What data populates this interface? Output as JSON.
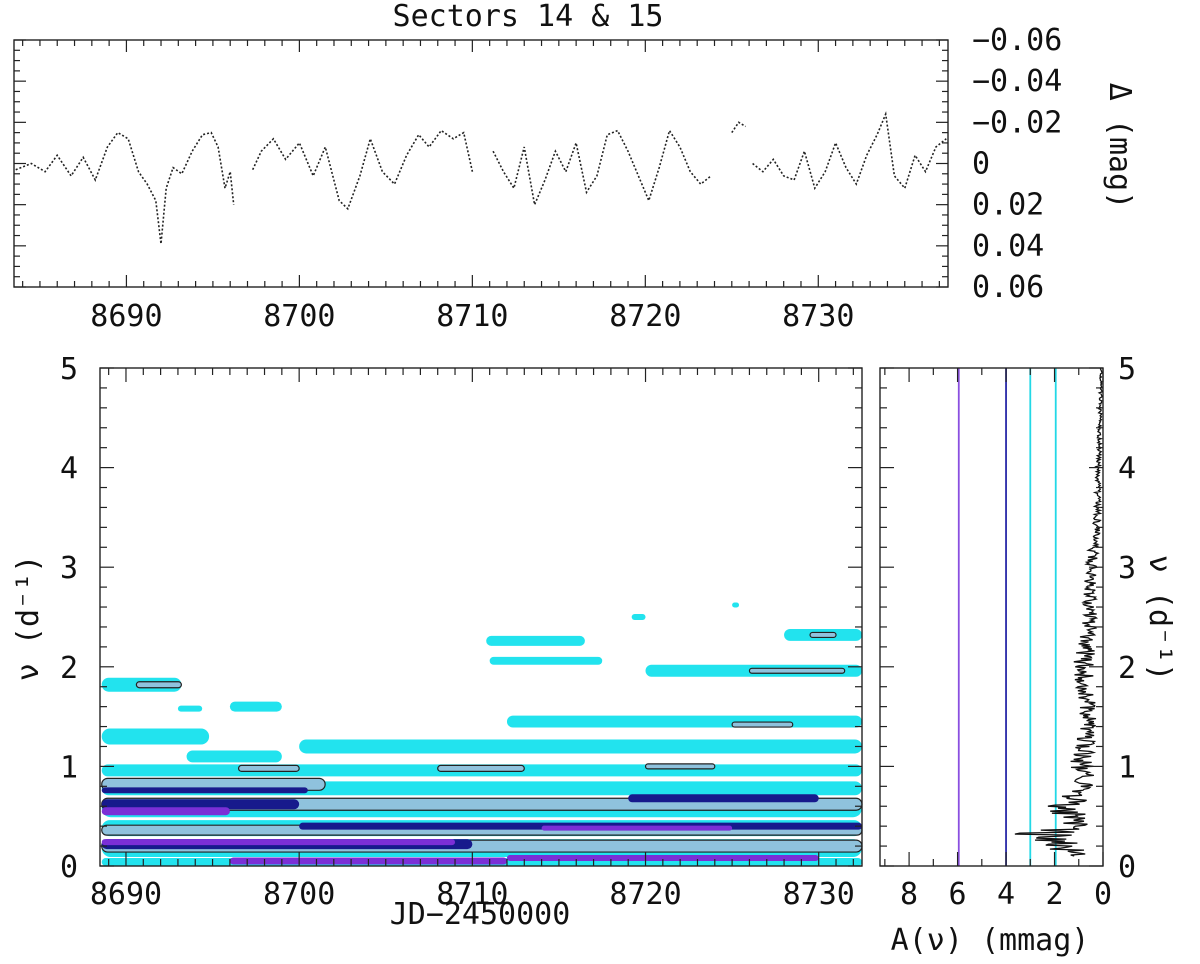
{
  "title": "Sectors 14 & 15",
  "chart_data": [
    {
      "type": "line",
      "panel": "light curve",
      "title": "Sectors 14 & 15",
      "xlabel": "",
      "ylabel": "Δ (mag)",
      "xlim": [
        8683.5,
        8737.5
      ],
      "ylim": [
        0.06,
        -0.06
      ],
      "inverted_y": true,
      "xticks": [
        8690,
        8700,
        8710,
        8720,
        8730
      ],
      "yticks": [
        -0.06,
        -0.04,
        -0.02,
        0,
        0.02,
        0.04,
        0.06
      ],
      "ytick_labels": [
        "−0.06",
        "−0.04",
        "−0.02",
        "0",
        "0.02",
        "0.04",
        "0.06"
      ],
      "line_style": "dotted",
      "segments": [
        {
          "x": [
            8683.6,
            8684.5,
            8685.3,
            8686.0,
            8686.8,
            8687.5,
            8688.2,
            8688.9,
            8689.5,
            8690.1,
            8690.7,
            8691.2,
            8691.7,
            8692.0,
            8692.3,
            8692.7,
            8693.2,
            8693.8,
            8694.4,
            8694.9,
            8695.3,
            8695.7,
            8696.0,
            8696.2
          ],
          "y": [
            0.003,
            0.0,
            0.004,
            -0.004,
            0.006,
            -0.003,
            0.008,
            -0.008,
            -0.015,
            -0.012,
            0.004,
            0.01,
            0.018,
            0.039,
            0.012,
            0.002,
            0.005,
            -0.006,
            -0.014,
            -0.015,
            -0.008,
            0.012,
            0.004,
            0.02
          ]
        },
        {
          "x": [
            8697.3,
            8697.8,
            8698.5,
            8699.2,
            8700.0,
            8700.8,
            8701.5,
            8702.3,
            8702.8,
            8703.5,
            8704.1,
            8704.8,
            8705.5,
            8706.2,
            8706.9,
            8707.5,
            8708.2,
            8708.9,
            8709.5,
            8710.0
          ],
          "y": [
            0.003,
            -0.006,
            -0.012,
            -0.002,
            -0.01,
            0.006,
            -0.008,
            0.018,
            0.022,
            0.006,
            -0.012,
            0.004,
            0.01,
            -0.004,
            -0.014,
            -0.008,
            -0.016,
            -0.012,
            -0.015,
            0.004
          ]
        },
        {
          "x": [
            8711.2,
            8711.8,
            8712.4,
            8713.0,
            8713.6,
            8714.2,
            8714.8,
            8715.4,
            8716.0,
            8716.6,
            8717.2,
            8717.8,
            8718.4,
            8719.0,
            8719.6,
            8720.2,
            8720.8,
            8721.4,
            8722.0,
            8722.6,
            8723.2,
            8723.8
          ],
          "y": [
            -0.006,
            0.004,
            0.012,
            -0.008,
            0.02,
            0.008,
            -0.006,
            0.004,
            -0.01,
            0.014,
            0.006,
            -0.014,
            -0.016,
            -0.006,
            0.006,
            0.018,
            0.002,
            -0.016,
            -0.008,
            0.004,
            0.01,
            0.006
          ]
        },
        {
          "x": [
            8725.0,
            8725.4,
            8725.8
          ],
          "y": [
            -0.015,
            -0.02,
            -0.018
          ]
        },
        {
          "x": [
            8726.2,
            8726.8,
            8727.4,
            8728.0,
            8728.6,
            8729.2,
            8729.8,
            8730.4,
            8731.0,
            8731.6,
            8732.2,
            8732.8,
            8733.4,
            8733.9,
            8734.4,
            8735.0,
            8735.6,
            8736.2,
            8736.8,
            8737.4
          ],
          "y": [
            0.0,
            0.004,
            -0.002,
            0.006,
            0.008,
            -0.006,
            0.012,
            0.004,
            -0.01,
            0.002,
            0.01,
            -0.004,
            -0.014,
            -0.024,
            0.006,
            0.012,
            -0.004,
            0.004,
            -0.008,
            -0.012
          ]
        }
      ]
    },
    {
      "type": "heatmap",
      "panel": "time-frequency",
      "xlabel": "JD−2450000",
      "ylabel": "ν (d⁻¹)",
      "xlim": [
        8688.5,
        8732.5
      ],
      "ylim": [
        0,
        5
      ],
      "xticks": [
        8690,
        8700,
        8710,
        8720,
        8730
      ],
      "yticks": [
        0,
        1,
        2,
        3,
        4,
        5
      ],
      "levels": [
        {
          "name": "cyan",
          "color": "#22e3ee"
        },
        {
          "name": "lightblue",
          "color": "#8fc2dd"
        },
        {
          "name": "navy",
          "color": "#171a8c"
        },
        {
          "name": "purple",
          "color": "#7b2fd6"
        }
      ],
      "patches": [
        {
          "x0": 8688.6,
          "x1": 8693.2,
          "y": 1.82,
          "h": 0.14,
          "level": 0
        },
        {
          "x0": 8690.6,
          "x1": 8693.2,
          "y": 1.82,
          "h": 0.06,
          "level": 1
        },
        {
          "x0": 8688.6,
          "x1": 8694.8,
          "y": 1.3,
          "h": 0.16,
          "level": 0
        },
        {
          "x0": 8693.5,
          "x1": 8699.0,
          "y": 1.1,
          "h": 0.12,
          "level": 0
        },
        {
          "x0": 8696.0,
          "x1": 8699.0,
          "y": 1.6,
          "h": 0.1,
          "level": 0
        },
        {
          "x0": 8693.0,
          "x1": 8694.4,
          "y": 1.58,
          "h": 0.06,
          "level": 0
        },
        {
          "x0": 8710.8,
          "x1": 8716.5,
          "y": 2.26,
          "h": 0.1,
          "level": 0
        },
        {
          "x0": 8711.0,
          "x1": 8717.5,
          "y": 2.06,
          "h": 0.08,
          "level": 0
        },
        {
          "x0": 8719.2,
          "x1": 8720.0,
          "y": 2.5,
          "h": 0.06,
          "level": 0
        },
        {
          "x0": 8725.0,
          "x1": 8725.4,
          "y": 2.62,
          "h": 0.05,
          "level": 0
        },
        {
          "x0": 8728.0,
          "x1": 8732.5,
          "y": 2.32,
          "h": 0.12,
          "level": 0
        },
        {
          "x0": 8729.5,
          "x1": 8731.0,
          "y": 2.32,
          "h": 0.05,
          "level": 1
        },
        {
          "x0": 8720.0,
          "x1": 8732.5,
          "y": 1.96,
          "h": 0.12,
          "level": 0
        },
        {
          "x0": 8726.0,
          "x1": 8731.5,
          "y": 1.96,
          "h": 0.05,
          "level": 1
        },
        {
          "x0": 8712.0,
          "x1": 8732.5,
          "y": 1.45,
          "h": 0.12,
          "level": 0
        },
        {
          "x0": 8725.0,
          "x1": 8728.5,
          "y": 1.42,
          "h": 0.05,
          "level": 1
        },
        {
          "x0": 8700.0,
          "x1": 8732.5,
          "y": 1.2,
          "h": 0.14,
          "level": 0
        },
        {
          "x0": 8688.6,
          "x1": 8732.5,
          "y": 0.96,
          "h": 0.12,
          "level": 0
        },
        {
          "x0": 8696.5,
          "x1": 8700.0,
          "y": 0.98,
          "h": 0.06,
          "level": 1
        },
        {
          "x0": 8708.0,
          "x1": 8713.0,
          "y": 0.98,
          "h": 0.06,
          "level": 1
        },
        {
          "x0": 8720.0,
          "x1": 8724.0,
          "y": 1.0,
          "h": 0.05,
          "level": 1
        },
        {
          "x0": 8688.6,
          "x1": 8732.5,
          "y": 0.78,
          "h": 0.14,
          "level": 0
        },
        {
          "x0": 8688.6,
          "x1": 8701.5,
          "y": 0.82,
          "h": 0.12,
          "level": 1
        },
        {
          "x0": 8688.6,
          "x1": 8700.5,
          "y": 0.76,
          "h": 0.06,
          "level": 2
        },
        {
          "x0": 8688.6,
          "x1": 8732.5,
          "y": 0.58,
          "h": 0.18,
          "level": 0
        },
        {
          "x0": 8688.6,
          "x1": 8732.5,
          "y": 0.62,
          "h": 0.12,
          "level": 1
        },
        {
          "x0": 8688.6,
          "x1": 8700.0,
          "y": 0.62,
          "h": 0.1,
          "level": 2
        },
        {
          "x0": 8719.0,
          "x1": 8730.0,
          "y": 0.68,
          "h": 0.08,
          "level": 2
        },
        {
          "x0": 8688.6,
          "x1": 8696.0,
          "y": 0.55,
          "h": 0.08,
          "level": 3
        },
        {
          "x0": 8688.6,
          "x1": 8732.5,
          "y": 0.38,
          "h": 0.16,
          "level": 0
        },
        {
          "x0": 8688.6,
          "x1": 8732.5,
          "y": 0.36,
          "h": 0.1,
          "level": 1
        },
        {
          "x0": 8700.0,
          "x1": 8732.5,
          "y": 0.4,
          "h": 0.07,
          "level": 2
        },
        {
          "x0": 8714.0,
          "x1": 8725.0,
          "y": 0.38,
          "h": 0.05,
          "level": 3
        },
        {
          "x0": 8688.6,
          "x1": 8732.5,
          "y": 0.18,
          "h": 0.18,
          "level": 0
        },
        {
          "x0": 8688.6,
          "x1": 8732.5,
          "y": 0.2,
          "h": 0.12,
          "level": 1
        },
        {
          "x0": 8688.6,
          "x1": 8710.0,
          "y": 0.22,
          "h": 0.1,
          "level": 2
        },
        {
          "x0": 8688.6,
          "x1": 8709.0,
          "y": 0.24,
          "h": 0.06,
          "level": 3
        },
        {
          "x0": 8688.6,
          "x1": 8732.5,
          "y": 0.04,
          "h": 0.08,
          "level": 0
        },
        {
          "x0": 8696.0,
          "x1": 8712.0,
          "y": 0.05,
          "h": 0.07,
          "level": 3
        },
        {
          "x0": 8712.0,
          "x1": 8730.0,
          "y": 0.08,
          "h": 0.06,
          "level": 3
        }
      ]
    },
    {
      "type": "line",
      "panel": "amplitude spectrum",
      "xlabel": "A(ν) (mmag)",
      "ylabel": "ν (d⁻¹)",
      "xlim": [
        9.2,
        0
      ],
      "ylim": [
        0,
        5
      ],
      "xticks": [
        8,
        6,
        4,
        2,
        0
      ],
      "yticks": [
        0,
        1,
        2,
        3,
        4,
        5
      ],
      "reference_lines": [
        {
          "x": 5.95,
          "color": "#8a4fe0"
        },
        {
          "x": 4.0,
          "color": "#2828a8"
        },
        {
          "x": 3.0,
          "color": "#22d8e6"
        },
        {
          "x": 1.95,
          "color": "#22d8e6"
        }
      ],
      "envelope": {
        "freq": [
          0.1,
          0.2,
          0.3,
          0.4,
          0.5,
          0.6,
          0.7,
          0.8,
          1.0,
          1.2,
          1.5,
          1.8,
          2.0,
          2.5,
          3.0,
          3.5,
          4.0,
          4.5,
          5.0
        ],
        "amp": [
          1.5,
          2.1,
          3.5,
          1.2,
          1.6,
          2.2,
          1.4,
          0.9,
          1.1,
          1.0,
          0.8,
          0.9,
          1.0,
          0.7,
          0.6,
          0.3,
          0.25,
          0.15,
          0.1
        ]
      }
    }
  ]
}
